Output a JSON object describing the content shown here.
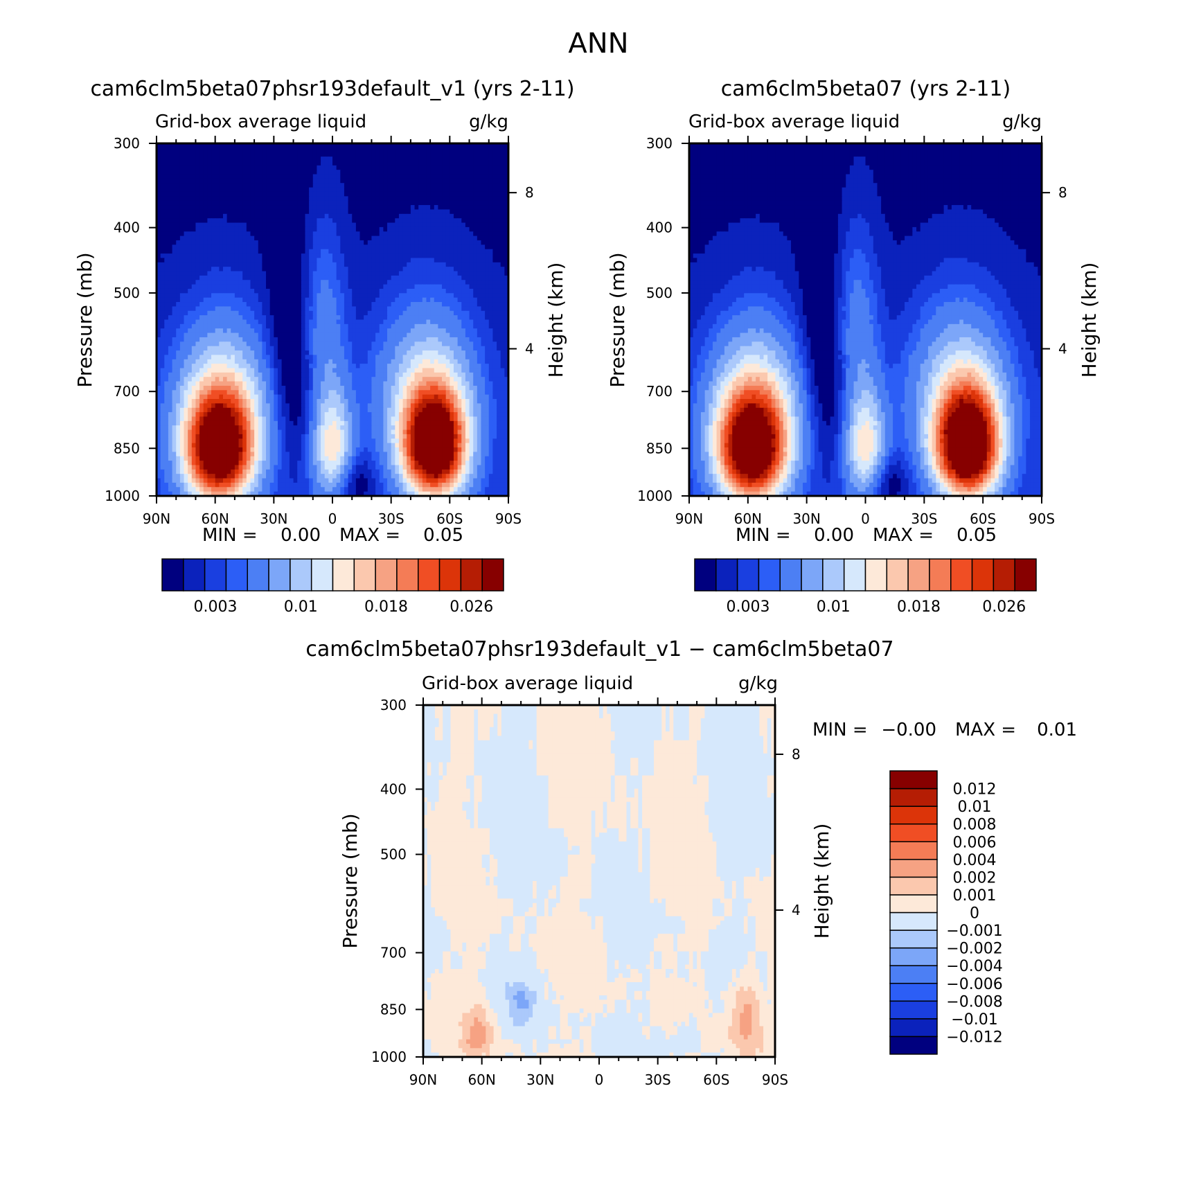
{
  "figure": {
    "title": "ANN"
  },
  "chart_data": [
    {
      "type": "heatmap",
      "title": "cam6clm5beta07phsr193default_v1 (yrs 2-11)",
      "subtitle_left": "Grid-box average liquid",
      "units": "g/kg",
      "ylabel": "Pressure (mb)",
      "ylabel_right": "Height (km)",
      "x_tick_labels": [
        "90N",
        "60N",
        "30N",
        "0",
        "30S",
        "60S",
        "90S"
      ],
      "x_tick_lats": [
        90,
        60,
        30,
        0,
        -30,
        -60,
        -90
      ],
      "y_tick_labels": [
        "300",
        "400",
        "500",
        "700",
        "850",
        "1000"
      ],
      "y_tick_values": [
        300,
        400,
        500,
        700,
        850,
        1000
      ],
      "height_tick_labels": [
        "8",
        "4"
      ],
      "height_tick_pressures": [
        355,
        605
      ],
      "ylim": [
        300,
        1000
      ],
      "xlim": [
        90,
        -90
      ],
      "min_label": "MIN =",
      "min_value": "0.00",
      "max_label": "MAX =",
      "max_value": "0.05",
      "colorbar_labels": [
        "0.003",
        "0.01",
        "0.018",
        "0.026"
      ],
      "colorbar_label_positions": [
        2.5,
        6.5,
        10.5,
        14.5
      ],
      "contour_levels": [
        0.001,
        0.002,
        0.003,
        0.004,
        0.006,
        0.008,
        0.01,
        0.012,
        0.014,
        0.016,
        0.018,
        0.02,
        0.022,
        0.024,
        0.026
      ],
      "colors": [
        "#00007f",
        "#0b22bc",
        "#1a3fe0",
        "#2c5ef6",
        "#4c7ff4",
        "#7ca6f8",
        "#abc9fb",
        "#d6e8fc",
        "#fde9d9",
        "#fbc8ae",
        "#f6a283",
        "#f47c56",
        "#f04e24",
        "#dc3409",
        "#b51d04",
        "#870000"
      ],
      "features": {
        "nh_peak_lat": 58,
        "nh_peak_p": 855,
        "nh_peak_val": 0.03,
        "sh_peak_lat": -52,
        "sh_peak_p": 845,
        "sh_peak_val": 0.032,
        "trop_col_val": 0.012,
        "upper_val": 0.0005
      }
    },
    {
      "type": "heatmap",
      "title": "cam6clm5beta07 (yrs 2-11)",
      "subtitle_left": "Grid-box average liquid",
      "units": "g/kg",
      "ylabel": "Pressure (mb)",
      "ylabel_right": "Height (km)",
      "x_tick_labels": [
        "90N",
        "60N",
        "30N",
        "0",
        "30S",
        "60S",
        "90S"
      ],
      "x_tick_lats": [
        90,
        60,
        30,
        0,
        -30,
        -60,
        -90
      ],
      "y_tick_labels": [
        "300",
        "400",
        "500",
        "700",
        "850",
        "1000"
      ],
      "y_tick_values": [
        300,
        400,
        500,
        700,
        850,
        1000
      ],
      "height_tick_labels": [
        "8",
        "4"
      ],
      "height_tick_pressures": [
        355,
        605
      ],
      "ylim": [
        300,
        1000
      ],
      "xlim": [
        90,
        -90
      ],
      "min_label": "MIN =",
      "min_value": "0.00",
      "max_label": "MAX =",
      "max_value": "0.05",
      "colorbar_labels": [
        "0.003",
        "0.01",
        "0.018",
        "0.026"
      ],
      "colorbar_label_positions": [
        2.5,
        6.5,
        10.5,
        14.5
      ],
      "contour_levels": [
        0.001,
        0.002,
        0.003,
        0.004,
        0.006,
        0.008,
        0.01,
        0.012,
        0.014,
        0.016,
        0.018,
        0.02,
        0.022,
        0.024,
        0.026
      ],
      "colors": [
        "#00007f",
        "#0b22bc",
        "#1a3fe0",
        "#2c5ef6",
        "#4c7ff4",
        "#7ca6f8",
        "#abc9fb",
        "#d6e8fc",
        "#fde9d9",
        "#fbc8ae",
        "#f6a283",
        "#f47c56",
        "#f04e24",
        "#dc3409",
        "#b51d04",
        "#870000"
      ],
      "features": {
        "nh_peak_lat": 58,
        "nh_peak_p": 855,
        "nh_peak_val": 0.03,
        "sh_peak_lat": -52,
        "sh_peak_p": 845,
        "sh_peak_val": 0.033,
        "trop_col_val": 0.012,
        "upper_val": 0.0005
      }
    },
    {
      "type": "heatmap",
      "title": "cam6clm5beta07phsr193default_v1 − cam6clm5beta07",
      "subtitle_left": "Grid-box average liquid",
      "units": "g/kg",
      "ylabel": "Pressure (mb)",
      "ylabel_right": "Height (km)",
      "x_tick_labels": [
        "90N",
        "60N",
        "30N",
        "0",
        "30S",
        "60S",
        "90S"
      ],
      "x_tick_lats": [
        90,
        60,
        30,
        0,
        -30,
        -60,
        -90
      ],
      "y_tick_labels": [
        "300",
        "400",
        "500",
        "700",
        "850",
        "1000"
      ],
      "y_tick_values": [
        300,
        400,
        500,
        700,
        850,
        1000
      ],
      "height_tick_labels": [
        "8",
        "4"
      ],
      "height_tick_pressures": [
        355,
        605
      ],
      "ylim": [
        300,
        1000
      ],
      "xlim": [
        90,
        -90
      ],
      "min_label": "MIN =",
      "min_value": "−0.00",
      "max_label": "MAX =",
      "max_value": "0.01",
      "contour_levels": [
        -0.012,
        -0.01,
        -0.008,
        -0.006,
        -0.004,
        -0.002,
        -0.001,
        0,
        0.001,
        0.002,
        0.004,
        0.006,
        0.008,
        0.01,
        0.012
      ],
      "colorbar_labels": [
        "0.012",
        "0.01",
        "0.008",
        "0.006",
        "0.004",
        "0.002",
        "0.001",
        "0",
        "−0.001",
        "−0.002",
        "−0.004",
        "−0.006",
        "−0.008",
        "−0.01",
        "−0.012"
      ],
      "colors": [
        "#00007f",
        "#0b22bc",
        "#1a3fe0",
        "#2c5ef6",
        "#4c7ff4",
        "#7ca6f8",
        "#abc9fb",
        "#d6e8fc",
        "#fde9d9",
        "#fbc8ae",
        "#f6a283",
        "#f47c56",
        "#f04e24",
        "#dc3409",
        "#b51d04",
        "#870000"
      ]
    }
  ]
}
